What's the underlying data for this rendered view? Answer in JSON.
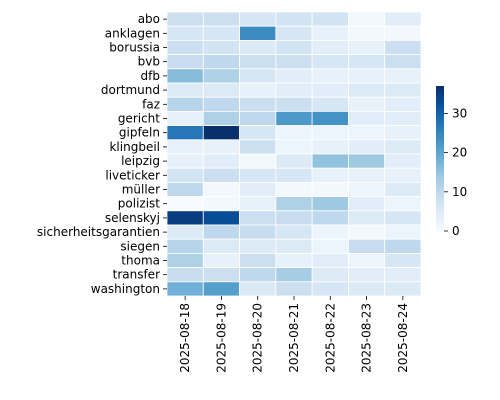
{
  "chart_data": {
    "type": "heatmap",
    "title": "",
    "xlabel": "",
    "ylabel": "",
    "x": [
      "2025-08-18",
      "2025-08-19",
      "2025-08-20",
      "2025-08-21",
      "2025-08-22",
      "2025-08-23",
      "2025-08-24"
    ],
    "y": [
      "abo",
      "anklagen",
      "borussia",
      "bvb",
      "dfb",
      "dortmund",
      "faz",
      "gericht",
      "gipfeln",
      "klingbeil",
      "leipzig",
      "liveticker",
      "müller",
      "polizist",
      "selenskyj",
      "sicherheitsgarantien",
      "siegen",
      "thoma",
      "transfer",
      "washington"
    ],
    "values": [
      [
        8,
        8,
        6,
        7,
        7,
        1,
        4
      ],
      [
        6,
        6,
        24,
        6,
        3,
        1,
        1
      ],
      [
        8,
        7,
        5,
        7,
        4,
        3,
        8
      ],
      [
        9,
        10,
        8,
        8,
        6,
        6,
        8
      ],
      [
        16,
        12,
        6,
        4,
        3,
        3,
        3
      ],
      [
        5,
        5,
        3,
        4,
        4,
        5,
        5
      ],
      [
        11,
        10,
        8,
        8,
        6,
        3,
        4
      ],
      [
        3,
        12,
        10,
        22,
        23,
        4,
        4
      ],
      [
        27,
        37,
        6,
        2,
        2,
        2,
        3
      ],
      [
        3,
        3,
        8,
        2,
        3,
        4,
        5
      ],
      [
        3,
        4,
        1,
        5,
        15,
        14,
        4
      ],
      [
        7,
        8,
        6,
        6,
        3,
        3,
        3
      ],
      [
        10,
        1,
        4,
        1,
        1,
        2,
        5
      ],
      [
        0,
        1,
        3,
        12,
        14,
        4,
        2
      ],
      [
        35,
        33,
        8,
        9,
        10,
        5,
        6
      ],
      [
        5,
        10,
        9,
        6,
        2,
        1,
        2
      ],
      [
        11,
        5,
        5,
        5,
        2,
        9,
        10
      ],
      [
        12,
        3,
        8,
        3,
        4,
        2,
        6
      ],
      [
        9,
        8,
        10,
        13,
        5,
        4,
        4
      ],
      [
        18,
        21,
        5,
        8,
        6,
        5,
        5
      ]
    ],
    "colorbar": {
      "min": 0,
      "max": 37,
      "ticks": [
        0,
        10,
        20,
        30
      ]
    },
    "colormap": [
      "#f7fbff",
      "#deebf7",
      "#c6dbef",
      "#9ecae1",
      "#6baed6",
      "#4292c6",
      "#2171b5",
      "#08519c",
      "#08306b"
    ]
  }
}
